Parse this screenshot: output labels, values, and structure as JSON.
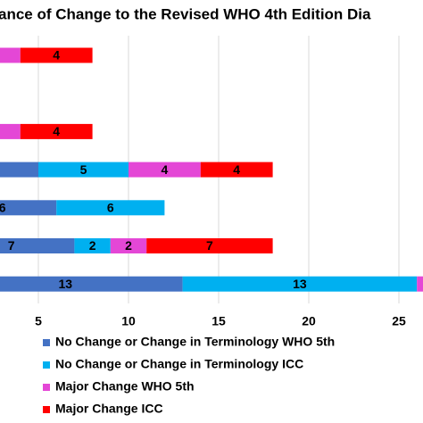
{
  "chart_data": {
    "type": "stacked_bar_horizontal",
    "title": "ance of Change to the Revised WHO 4th Edition Dia",
    "categories": [
      null,
      null,
      null,
      null,
      null,
      null,
      null
    ],
    "series": [
      {
        "name": "No Change or Change in Terminology WHO 5th",
        "color": "#4472c4",
        "values": [
          0,
          0,
          0,
          5,
          6,
          7,
          13
        ]
      },
      {
        "name": "No Change or Change in Terminology ICC",
        "color": "#00b0f0",
        "values": [
          0,
          0,
          0,
          5,
          6,
          2,
          13
        ]
      },
      {
        "name": "Major Change WHO 5th",
        "color": "#e447d6",
        "values": [
          4,
          0,
          4,
          4,
          0,
          2,
          1
        ]
      },
      {
        "name": "Major Change ICC",
        "color": "#ff0000",
        "values": [
          4,
          0,
          4,
          4,
          0,
          7,
          0
        ]
      }
    ],
    "xlim": [
      0,
      27
    ],
    "xticks": [
      5,
      10,
      15,
      20,
      25
    ],
    "grid": true
  }
}
